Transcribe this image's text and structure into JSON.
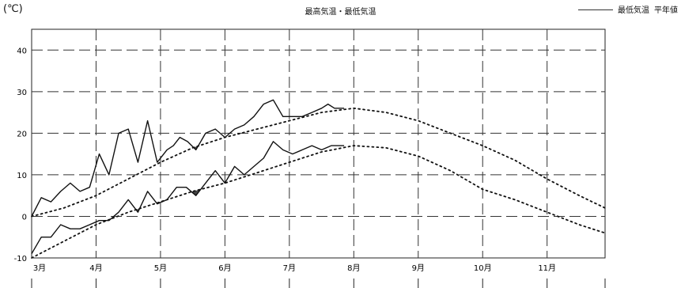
{
  "chart_data": {
    "type": "line",
    "title": "最高気温・最低気温",
    "ylabel": "(℃)",
    "ylim": [
      -10,
      45
    ],
    "y_ticks": [
      -10,
      0,
      10,
      20,
      30,
      40
    ],
    "x_ticks": [
      "3月",
      "4月",
      "5月",
      "6月",
      "7月",
      "8月",
      "9月",
      "10月",
      "11月"
    ],
    "grid": true,
    "legend": {
      "position": "top-right",
      "entries": [
        "最低気温",
        "平年値"
      ]
    },
    "x_range": [
      0,
      8.9
    ],
    "series": [
      {
        "name": "最高気温",
        "style": "solid",
        "x": [
          0,
          0.15,
          0.3,
          0.45,
          0.6,
          0.75,
          0.9,
          1.05,
          1.2,
          1.35,
          1.5,
          1.65,
          1.8,
          1.95,
          2.1,
          2.2,
          2.3,
          2.42,
          2.55,
          2.7,
          2.85,
          3.0,
          3.15,
          3.3,
          3.45,
          3.6,
          3.75,
          3.9,
          4.05,
          4.2,
          4.35,
          4.5,
          4.6,
          4.7,
          4.85
        ],
        "values": [
          0,
          4.5,
          3.5,
          6,
          8,
          6,
          7,
          15,
          10,
          20,
          21,
          13,
          23,
          13,
          16,
          17,
          19,
          18,
          16,
          20,
          21,
          19,
          21,
          22,
          24,
          27,
          28,
          24,
          24,
          24,
          25,
          26,
          27,
          26,
          26
        ]
      },
      {
        "name": "最低気温",
        "style": "solid",
        "x": [
          0,
          0.15,
          0.3,
          0.45,
          0.6,
          0.75,
          0.9,
          1.05,
          1.2,
          1.35,
          1.5,
          1.65,
          1.8,
          1.95,
          2.1,
          2.25,
          2.4,
          2.55,
          2.7,
          2.85,
          3.0,
          3.15,
          3.3,
          3.45,
          3.6,
          3.75,
          3.9,
          4.05,
          4.2,
          4.35,
          4.5,
          4.65,
          4.85
        ],
        "values": [
          -9,
          -5,
          -5,
          -2,
          -3,
          -3,
          -2,
          -1,
          -1,
          1,
          4,
          1,
          6,
          3,
          4,
          7,
          7,
          5,
          8,
          11,
          8,
          12,
          10,
          12,
          14,
          18,
          16,
          15,
          16,
          17,
          16,
          17,
          17
        ]
      },
      {
        "name": "最高気温 平年値",
        "style": "dotted",
        "x": [
          0,
          0.5,
          1,
          1.5,
          2,
          2.5,
          3,
          3.5,
          4,
          4.5,
          5,
          5.5,
          6,
          6.5,
          7,
          7.5,
          8,
          8.5,
          8.9
        ],
        "values": [
          0,
          2,
          5,
          9,
          13,
          16.5,
          19,
          21,
          23,
          25,
          26,
          25,
          23,
          20,
          17,
          13.5,
          9,
          5,
          2
        ]
      },
      {
        "name": "最低気温 平年値",
        "style": "dotted",
        "x": [
          0,
          0.5,
          1,
          1.5,
          2,
          2.5,
          3,
          3.5,
          4,
          4.5,
          5,
          5.5,
          6,
          6.5,
          7,
          7.5,
          8,
          8.5,
          8.9
        ],
        "values": [
          -10,
          -6,
          -2,
          1,
          3.5,
          6,
          8,
          10.5,
          13,
          15.5,
          17,
          16.5,
          14.5,
          11,
          6.5,
          4,
          1,
          -2,
          -4
        ]
      }
    ]
  }
}
